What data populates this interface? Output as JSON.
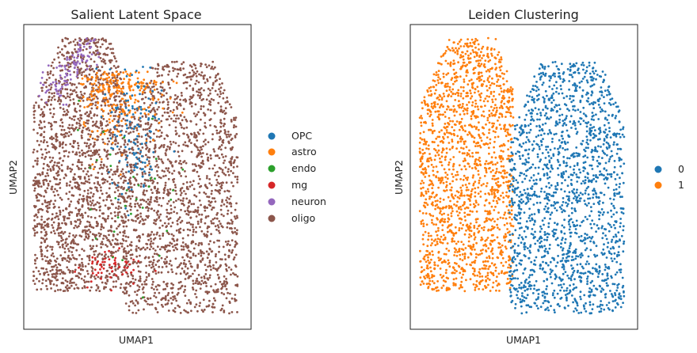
{
  "chart_data": [
    {
      "type": "scatter",
      "title": "Salient Latent Space",
      "xlabel": "UMAP1",
      "ylabel": "UMAP2",
      "color_by": "cell type",
      "legend": {
        "placement": "right",
        "entries": [
          {
            "label": "OPC",
            "color": "#1f77b4"
          },
          {
            "label": "astro",
            "color": "#ff7f0e"
          },
          {
            "label": "endo",
            "color": "#2ca02c"
          },
          {
            "label": "mg",
            "color": "#d62728"
          },
          {
            "label": "neuron",
            "color": "#9467bd"
          },
          {
            "label": "oligo",
            "color": "#8c564b"
          }
        ]
      },
      "approx_counts": {
        "OPC": 130,
        "astro": 260,
        "endo": 35,
        "mg": 55,
        "neuron": 110,
        "oligo": 3400
      },
      "x_ticks": [],
      "y_ticks": []
    },
    {
      "type": "scatter",
      "title": "Leiden Clustering",
      "xlabel": "UMAP1",
      "ylabel": "UMAP2",
      "color_by": "leiden cluster",
      "legend": {
        "placement": "right",
        "entries": [
          {
            "label": "0",
            "color": "#1f77b4"
          },
          {
            "label": "1",
            "color": "#ff7f0e"
          }
        ]
      },
      "approx_counts": {
        "0": 2000,
        "1": 2000
      },
      "x_ticks": [],
      "y_ticks": []
    }
  ]
}
